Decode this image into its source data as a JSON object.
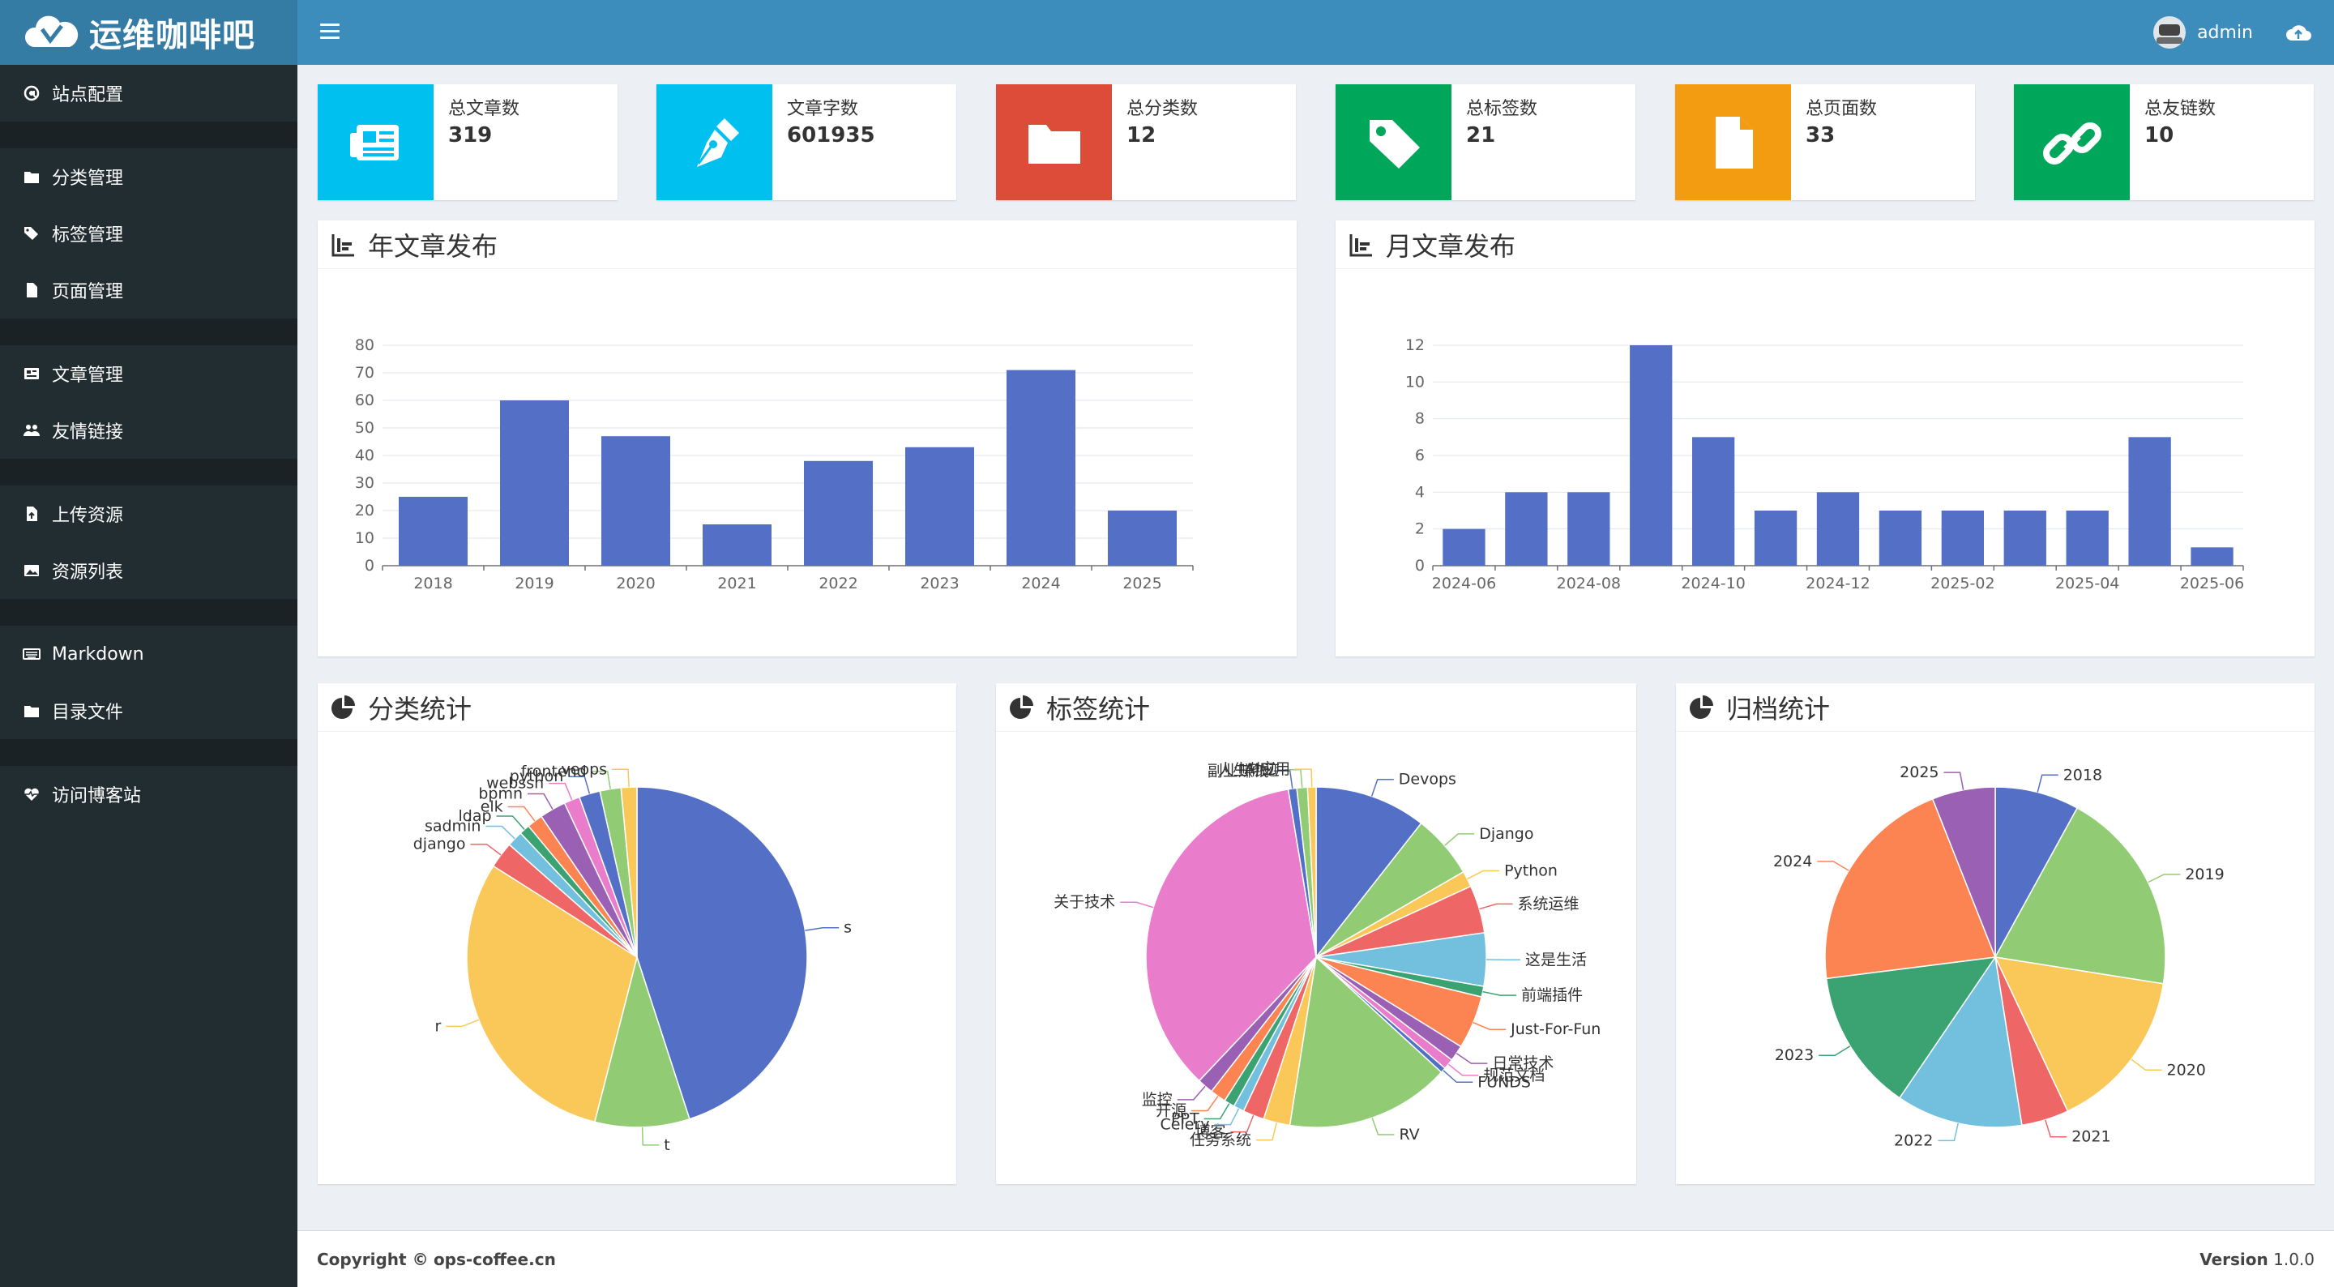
{
  "app": {
    "title": "运维咖啡吧"
  },
  "topbar": {
    "username": "admin",
    "menu_icon": "hamburger-icon",
    "upload_icon": "cloud-upload-icon"
  },
  "sidebar": {
    "groups": [
      [
        {
          "label": "站点配置",
          "icon": "at-icon"
        }
      ],
      [
        {
          "label": "分类管理",
          "icon": "folder-icon"
        },
        {
          "label": "标签管理",
          "icon": "tags-icon"
        },
        {
          "label": "页面管理",
          "icon": "file-icon"
        }
      ],
      [
        {
          "label": "文章管理",
          "icon": "newspaper-icon"
        },
        {
          "label": "友情链接",
          "icon": "users-icon"
        }
      ],
      [
        {
          "label": "上传资源",
          "icon": "file-upload-icon"
        },
        {
          "label": "资源列表",
          "icon": "images-icon"
        }
      ],
      [
        {
          "label": "Markdown",
          "icon": "keyboard-icon"
        },
        {
          "label": "目录文件",
          "icon": "folder-icon"
        }
      ],
      [
        {
          "label": "访问博客站",
          "icon": "heartbeat-icon"
        }
      ]
    ]
  },
  "stats": [
    {
      "label": "总文章数",
      "value": "319",
      "color": "#00c0ef",
      "icon": "newspaper-icon"
    },
    {
      "label": "文章字数",
      "value": "601935",
      "color": "#00c0ef",
      "icon": "pen-nib-icon"
    },
    {
      "label": "总分类数",
      "value": "12",
      "color": "#dd4b39",
      "icon": "folder-icon"
    },
    {
      "label": "总标签数",
      "value": "21",
      "color": "#00a65a",
      "icon": "tag-icon"
    },
    {
      "label": "总页面数",
      "value": "33",
      "color": "#f39c12",
      "icon": "file-icon"
    },
    {
      "label": "总友链数",
      "value": "10",
      "color": "#00a65a",
      "icon": "link-icon"
    }
  ],
  "boxes": {
    "yearly": {
      "title": "年文章发布",
      "icon": "bar-chart-icon"
    },
    "monthly": {
      "title": "月文章发布",
      "icon": "bar-chart-icon"
    },
    "category": {
      "title": "分类统计",
      "icon": "pie-chart-icon"
    },
    "tags": {
      "title": "标签统计",
      "icon": "pie-chart-icon"
    },
    "archive": {
      "title": "归档统计",
      "icon": "pie-chart-icon"
    }
  },
  "footer": {
    "copyright_label": "Copyright ©",
    "site": "ops-coffee.cn",
    "version_label": "Version",
    "version": "1.0.0"
  },
  "chart_data": [
    {
      "type": "bar",
      "categories": [
        "2018",
        "2019",
        "2020",
        "2021",
        "2022",
        "2023",
        "2024",
        "2025"
      ],
      "values": [
        25,
        60,
        47,
        15,
        38,
        43,
        71,
        20
      ],
      "ylim": [
        0,
        80
      ],
      "yticks": [
        0,
        10,
        20,
        30,
        40,
        50,
        60,
        70,
        80
      ],
      "color": "#5470c6"
    },
    {
      "type": "bar",
      "categories": [
        "2024-06",
        "2024-07",
        "2024-08",
        "2024-09",
        "2024-10",
        "2024-11",
        "2024-12",
        "2025-01",
        "2025-02",
        "2025-03",
        "2025-04",
        "2025-05",
        "2025-06"
      ],
      "tick_labels": [
        "2024-06",
        "",
        "2024-08",
        "",
        "2024-10",
        "",
        "2024-12",
        "",
        "2025-02",
        "",
        "2025-04",
        "",
        "2025-06"
      ],
      "values": [
        2,
        4,
        4,
        12,
        7,
        3,
        4,
        3,
        3,
        3,
        3,
        7,
        1
      ],
      "ylim": [
        0,
        12
      ],
      "yticks": [
        0,
        2,
        4,
        6,
        8,
        10,
        12
      ],
      "color": "#5470c6"
    },
    {
      "type": "pie",
      "slices": [
        {
          "name": "s",
          "value": 45.0,
          "color": "#5470c6"
        },
        {
          "name": "t",
          "value": 9.0,
          "color": "#91cc75"
        },
        {
          "name": "r",
          "value": 30.0,
          "color": "#fac858"
        },
        {
          "name": "django",
          "value": 2.5,
          "color": "#ee6666"
        },
        {
          "name": "sadmin",
          "value": 1.5,
          "color": "#73c0de"
        },
        {
          "name": "ldap",
          "value": 1.0,
          "color": "#3ba272"
        },
        {
          "name": "elk",
          "value": 1.5,
          "color": "#fc8452"
        },
        {
          "name": "bpmn",
          "value": 2.5,
          "color": "#9a60b4"
        },
        {
          "name": "webssh",
          "value": 1.5,
          "color": "#ea7ccc"
        },
        {
          "name": "python",
          "value": 2.0,
          "color": "#5470c6"
        },
        {
          "name": "frontend",
          "value": 2.0,
          "color": "#91cc75"
        },
        {
          "name": "veops",
          "value": 1.5,
          "color": "#fac858"
        }
      ]
    },
    {
      "type": "pie",
      "slices": [
        {
          "name": "Devops",
          "value": 10.5,
          "color": "#5470c6"
        },
        {
          "name": "Django",
          "value": 6.0,
          "color": "#91cc75"
        },
        {
          "name": "Python",
          "value": 1.5,
          "color": "#fac858"
        },
        {
          "name": "系统运维",
          "value": 4.5,
          "color": "#ee6666"
        },
        {
          "name": "这是生活",
          "value": 5.0,
          "color": "#73c0de"
        },
        {
          "name": "前端插件",
          "value": 1.0,
          "color": "#3ba272"
        },
        {
          "name": "Just-For-Fun",
          "value": 5.0,
          "color": "#fc8452"
        },
        {
          "name": "日常技术",
          "value": 1.5,
          "color": "#9a60b4"
        },
        {
          "name": "规范文档",
          "value": 1.0,
          "color": "#ea7ccc"
        },
        {
          "name": "FUNDS",
          "value": 0.5,
          "color": "#5470c6"
        },
        {
          "name": "RV",
          "value": 15.5,
          "color": "#91cc75"
        },
        {
          "name": "任务系统",
          "value": 2.5,
          "color": "#fac858"
        },
        {
          "name": "博客",
          "value": 2.0,
          "color": "#ee6666"
        },
        {
          "name": "Celery",
          "value": 1.0,
          "color": "#73c0de"
        },
        {
          "name": "PPT",
          "value": 1.0,
          "color": "#3ba272"
        },
        {
          "name": "开源",
          "value": 1.5,
          "color": "#fc8452"
        },
        {
          "name": "监控",
          "value": 1.5,
          "color": "#9a60b4"
        },
        {
          "name": "关于技术",
          "value": 35.0,
          "color": "#ea7ccc"
        },
        {
          "name": "副业赚钱",
          "value": 0.8,
          "color": "#5470c6"
        },
        {
          "name": "人生轨迹",
          "value": 1.0,
          "color": "#91cc75"
        },
        {
          "name": "AI应用",
          "value": 0.8,
          "color": "#fac858"
        }
      ]
    },
    {
      "type": "pie",
      "slices": [
        {
          "name": "2018",
          "value": 8.0,
          "color": "#5470c6"
        },
        {
          "name": "2019",
          "value": 19.5,
          "color": "#91cc75"
        },
        {
          "name": "2020",
          "value": 15.5,
          "color": "#fac858"
        },
        {
          "name": "2021",
          "value": 4.5,
          "color": "#ee6666"
        },
        {
          "name": "2022",
          "value": 12.0,
          "color": "#73c0de"
        },
        {
          "name": "2023",
          "value": 13.5,
          "color": "#3ba272"
        },
        {
          "name": "2024",
          "value": 21.0,
          "color": "#fc8452"
        },
        {
          "name": "2025",
          "value": 6.0,
          "color": "#9a60b4"
        }
      ]
    }
  ]
}
